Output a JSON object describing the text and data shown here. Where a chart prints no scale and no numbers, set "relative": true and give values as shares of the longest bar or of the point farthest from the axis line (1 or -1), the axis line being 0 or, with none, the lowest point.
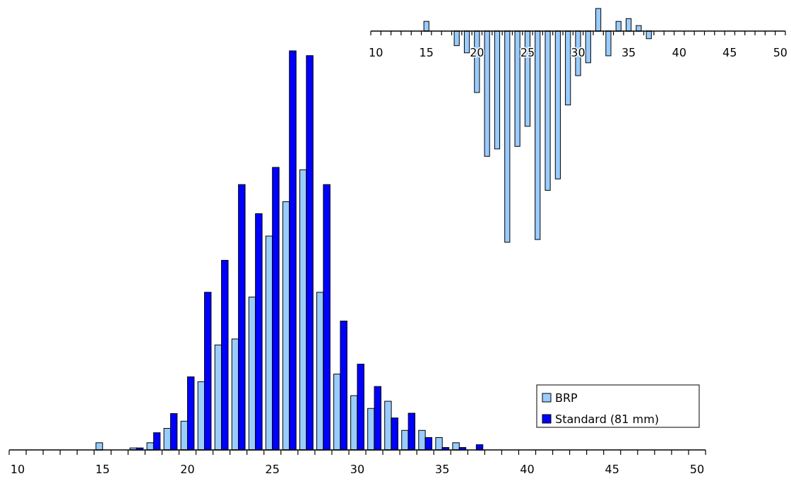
{
  "chart_data": [
    {
      "type": "bar",
      "relative": true,
      "legend": "bottom right",
      "categories": [
        "10",
        null,
        null,
        null,
        null,
        "15",
        null,
        null,
        null,
        null,
        "20",
        null,
        null,
        null,
        null,
        "25",
        null,
        null,
        null,
        null,
        "30",
        null,
        null,
        null,
        null,
        "35",
        null,
        null,
        null,
        null,
        "40",
        null,
        null,
        null,
        null,
        "45",
        null,
        null,
        null,
        null,
        "50"
      ],
      "series": [
        {
          "name": "BRP",
          "color": "#99ccff",
          "values": [
            0,
            0,
            0,
            0,
            0,
            0.018,
            0,
            0.005,
            0.018,
            0.054,
            0.072,
            0.171,
            0.263,
            0.278,
            0.383,
            0.536,
            0.622,
            0.702,
            0.395,
            0.19,
            0.136,
            0.104,
            0.122,
            0.049,
            0.049,
            0.031,
            0.018,
            0,
            0,
            0,
            0,
            0,
            0,
            0,
            0,
            0,
            0,
            0,
            0,
            0,
            0
          ]
        },
        {
          "name": "Standard (81 mm)",
          "color": "#0000ff",
          "values": [
            0,
            0,
            0,
            0,
            0,
            0,
            0,
            0.005,
            0.043,
            0.091,
            0.183,
            0.395,
            0.475,
            0.665,
            0.592,
            0.708,
            1,
            0.988,
            0.665,
            0.323,
            0.215,
            0.159,
            0.08,
            0.092,
            0.031,
            0.006,
            0.006,
            0.013,
            0,
            0,
            0,
            0,
            0,
            0,
            0,
            0,
            0,
            0,
            0,
            0,
            0
          ]
        }
      ]
    },
    {
      "type": "bar",
      "relative": true,
      "categories": [
        "10",
        null,
        null,
        null,
        null,
        "15",
        null,
        null,
        null,
        null,
        "20",
        null,
        null,
        null,
        null,
        "25",
        null,
        null,
        null,
        null,
        "30",
        null,
        null,
        null,
        null,
        "35",
        null,
        null,
        null,
        null,
        "40",
        null,
        null,
        null,
        null,
        "45",
        null,
        null,
        null,
        null,
        "50"
      ],
      "series": [
        {
          "color": "#99ccff",
          "values": [
            0,
            0,
            0,
            0,
            0,
            0.046,
            0,
            0,
            -0.069,
            -0.103,
            -0.291,
            -0.593,
            -0.558,
            -1,
            -0.546,
            -0.451,
            -0.987,
            -0.754,
            -0.7,
            -0.35,
            -0.211,
            -0.15,
            0.107,
            -0.117,
            0.046,
            0.059,
            0.026,
            -0.036,
            0,
            0,
            0,
            0,
            0,
            0,
            0,
            0,
            0,
            0,
            0,
            0,
            0
          ]
        }
      ]
    }
  ]
}
